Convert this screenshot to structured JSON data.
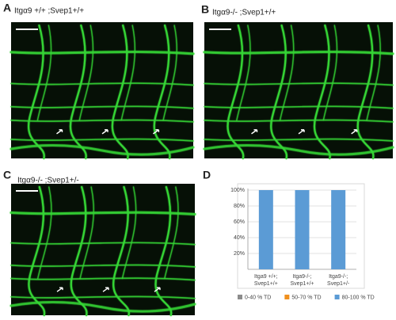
{
  "panels": [
    {
      "letter": "A",
      "caption": "Itgα9 +/+ ;Svep1+/+"
    },
    {
      "letter": "B",
      "caption": "Itgα9-/- ;Svep1+/+"
    },
    {
      "letter": "C",
      "caption": "Itgα9-/- ;Svep1+/-"
    }
  ],
  "chart_data": {
    "type": "stacked-bar",
    "panel_label": "D",
    "categories": [
      [
        "Itga9 +/+;",
        "Svep1+/+"
      ],
      [
        "Itga9-/-;",
        "Svep1+/+"
      ],
      [
        "Itga9-/-;",
        "Svep1+/-"
      ]
    ],
    "series": [
      {
        "name": "0-40 % TD",
        "color": "#8c8c8c",
        "values": [
          0,
          0,
          0
        ]
      },
      {
        "name": "50-70 % TD",
        "color": "#f0901e",
        "values": [
          0,
          0,
          0
        ]
      },
      {
        "name": "80-100 % TD",
        "color": "#5b9bd5",
        "values": [
          100,
          100,
          100
        ]
      }
    ],
    "ylim": [
      0,
      100
    ],
    "yticks": [
      {
        "value": 20,
        "label": "20%"
      },
      {
        "value": 40,
        "label": "40%"
      },
      {
        "value": 60,
        "label": "60%"
      },
      {
        "value": 80,
        "label": "80%"
      },
      {
        "value": 100,
        "label": "100%"
      }
    ],
    "grid": true,
    "legend": "bottom"
  }
}
